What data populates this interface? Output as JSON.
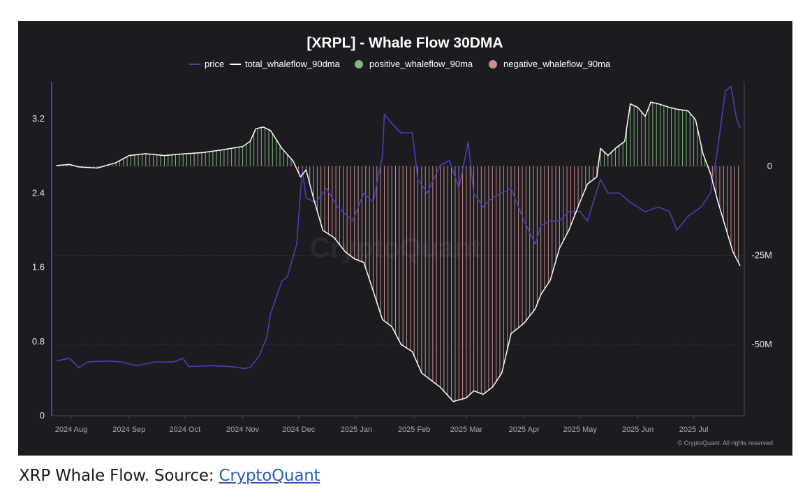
{
  "chart_data": {
    "type": "bar+line",
    "title": "[XRPL] - Whale Flow 30DMA",
    "legend": [
      {
        "name": "price",
        "color": "#4b3fb3",
        "marker": "line"
      },
      {
        "name": "total_whaleflow_90dma",
        "color": "#ffffff",
        "marker": "line"
      },
      {
        "name": "positive_whaleflow_90ma",
        "color": "#7fb87a",
        "marker": "dot"
      },
      {
        "name": "negative_whaleflow_90ma",
        "color": "#c98f8d",
        "marker": "dot"
      }
    ],
    "legend_position": "top-center",
    "x_ticks": [
      "2024 Aug",
      "2024 Sep",
      "2024 Oct",
      "2024 Nov",
      "2024 Dec",
      "2025 Jan",
      "2025 Feb",
      "2025 Mar",
      "2025 Apr",
      "2025 May",
      "2025 Jun",
      "2025 Jul"
    ],
    "x_range": [
      "2024-07-23",
      "2025-07-27"
    ],
    "y_left": {
      "ticks": [
        "0",
        "0.8",
        "1.6",
        "2.4",
        "3.2"
      ],
      "range": [
        0,
        3.6
      ]
    },
    "y_right": {
      "ticks": [
        "0",
        "-25M",
        "-50M"
      ],
      "range": [
        -70000000,
        23700000
      ]
    },
    "grid": "horizontal",
    "watermark": "CryptoQuant",
    "credit": "© CryptoQuant. All rights reserved",
    "series": [
      {
        "name": "price",
        "axis": "left",
        "points": [
          [
            "2024-07-24",
            0.59
          ],
          [
            "2024-07-31",
            0.62
          ],
          [
            "2024-08-05",
            0.52
          ],
          [
            "2024-08-10",
            0.58
          ],
          [
            "2024-08-20",
            0.59
          ],
          [
            "2024-08-28",
            0.58
          ],
          [
            "2024-09-05",
            0.54
          ],
          [
            "2024-09-15",
            0.58
          ],
          [
            "2024-09-25",
            0.58
          ],
          [
            "2024-09-30",
            0.62
          ],
          [
            "2024-10-03",
            0.53
          ],
          [
            "2024-10-15",
            0.54
          ],
          [
            "2024-10-25",
            0.53
          ],
          [
            "2024-11-02",
            0.51
          ],
          [
            "2024-11-05",
            0.52
          ],
          [
            "2024-11-10",
            0.65
          ],
          [
            "2024-11-14",
            0.85
          ],
          [
            "2024-11-16",
            1.1
          ],
          [
            "2024-11-22",
            1.45
          ],
          [
            "2024-11-25",
            1.5
          ],
          [
            "2024-11-30",
            1.85
          ],
          [
            "2024-12-02",
            2.4
          ],
          [
            "2024-12-03",
            2.65
          ],
          [
            "2024-12-05",
            2.35
          ],
          [
            "2024-12-10",
            2.3
          ],
          [
            "2024-12-16",
            2.45
          ],
          [
            "2024-12-22",
            2.25
          ],
          [
            "2024-12-30",
            2.1
          ],
          [
            "2025-01-05",
            2.4
          ],
          [
            "2025-01-10",
            2.3
          ],
          [
            "2025-01-15",
            2.8
          ],
          [
            "2025-01-16",
            3.25
          ],
          [
            "2025-01-20",
            3.15
          ],
          [
            "2025-01-25",
            3.05
          ],
          [
            "2025-01-31",
            3.05
          ],
          [
            "2025-02-03",
            2.55
          ],
          [
            "2025-02-08",
            2.4
          ],
          [
            "2025-02-15",
            2.7
          ],
          [
            "2025-02-20",
            2.75
          ],
          [
            "2025-02-25",
            2.45
          ],
          [
            "2025-03-02",
            2.95
          ],
          [
            "2025-03-05",
            2.4
          ],
          [
            "2025-03-10",
            2.25
          ],
          [
            "2025-03-15",
            2.35
          ],
          [
            "2025-03-20",
            2.4
          ],
          [
            "2025-03-25",
            2.45
          ],
          [
            "2025-04-01",
            2.1
          ],
          [
            "2025-04-07",
            1.85
          ],
          [
            "2025-04-10",
            2.05
          ],
          [
            "2025-04-15",
            2.1
          ],
          [
            "2025-04-20",
            2.1
          ],
          [
            "2025-04-25",
            2.2
          ],
          [
            "2025-05-01",
            2.2
          ],
          [
            "2025-05-05",
            2.1
          ],
          [
            "2025-05-12",
            2.55
          ],
          [
            "2025-05-16",
            2.4
          ],
          [
            "2025-05-22",
            2.4
          ],
          [
            "2025-05-28",
            2.3
          ],
          [
            "2025-06-05",
            2.2
          ],
          [
            "2025-06-12",
            2.25
          ],
          [
            "2025-06-18",
            2.2
          ],
          [
            "2025-06-22",
            2.0
          ],
          [
            "2025-06-28",
            2.15
          ],
          [
            "2025-07-05",
            2.25
          ],
          [
            "2025-07-10",
            2.4
          ],
          [
            "2025-07-14",
            2.9
          ],
          [
            "2025-07-18",
            3.5
          ],
          [
            "2025-07-21",
            3.55
          ],
          [
            "2025-07-24",
            3.2
          ],
          [
            "2025-07-26",
            3.1
          ]
        ]
      },
      {
        "name": "total_whaleflow_90dma",
        "axis": "right",
        "points": [
          [
            "2024-07-24",
            200000
          ],
          [
            "2024-07-31",
            500000
          ],
          [
            "2024-08-05",
            -200000
          ],
          [
            "2024-08-15",
            -500000
          ],
          [
            "2024-08-25",
            1000000
          ],
          [
            "2024-09-01",
            3000000
          ],
          [
            "2024-09-10",
            3500000
          ],
          [
            "2024-09-20",
            3000000
          ],
          [
            "2024-10-01",
            3500000
          ],
          [
            "2024-10-10",
            3800000
          ],
          [
            "2024-10-20",
            4500000
          ],
          [
            "2024-10-28",
            5200000
          ],
          [
            "2024-11-01",
            5500000
          ],
          [
            "2024-11-05",
            7000000
          ],
          [
            "2024-11-08",
            10500000
          ],
          [
            "2024-11-12",
            11000000
          ],
          [
            "2024-11-16",
            10000000
          ],
          [
            "2024-11-22",
            5000000
          ],
          [
            "2024-11-28",
            1500000
          ],
          [
            "2024-12-02",
            -3000000
          ],
          [
            "2024-12-05",
            -1000000
          ],
          [
            "2024-12-09",
            -9000000
          ],
          [
            "2024-12-14",
            -18000000
          ],
          [
            "2024-12-20",
            -20000000
          ],
          [
            "2024-12-26",
            -24000000
          ],
          [
            "2024-12-31",
            -26000000
          ],
          [
            "2025-01-05",
            -27000000
          ],
          [
            "2025-01-10",
            -35000000
          ],
          [
            "2025-01-15",
            -43000000
          ],
          [
            "2025-01-20",
            -45000000
          ],
          [
            "2025-01-25",
            -50000000
          ],
          [
            "2025-01-31",
            -52000000
          ],
          [
            "2025-02-05",
            -58000000
          ],
          [
            "2025-02-10",
            -60000000
          ],
          [
            "2025-02-15",
            -62000000
          ],
          [
            "2025-02-22",
            -66000000
          ],
          [
            "2025-03-01",
            -65000000
          ],
          [
            "2025-03-05",
            -63000000
          ],
          [
            "2025-03-10",
            -64000000
          ],
          [
            "2025-03-15",
            -62000000
          ],
          [
            "2025-03-20",
            -58000000
          ],
          [
            "2025-03-25",
            -47000000
          ],
          [
            "2025-04-01",
            -44000000
          ],
          [
            "2025-04-07",
            -40000000
          ],
          [
            "2025-04-10",
            -36000000
          ],
          [
            "2025-04-15",
            -32000000
          ],
          [
            "2025-04-20",
            -23000000
          ],
          [
            "2025-04-25",
            -18000000
          ],
          [
            "2025-05-01",
            -10000000
          ],
          [
            "2025-05-05",
            -5000000
          ],
          [
            "2025-05-10",
            -3000000
          ],
          [
            "2025-05-12",
            5000000
          ],
          [
            "2025-05-16",
            3000000
          ],
          [
            "2025-05-20",
            5000000
          ],
          [
            "2025-05-25",
            7000000
          ],
          [
            "2025-05-28",
            17500000
          ],
          [
            "2025-06-01",
            16500000
          ],
          [
            "2025-06-05",
            14000000
          ],
          [
            "2025-06-08",
            18000000
          ],
          [
            "2025-06-12",
            17500000
          ],
          [
            "2025-06-18",
            16500000
          ],
          [
            "2025-06-22",
            16000000
          ],
          [
            "2025-06-28",
            15500000
          ],
          [
            "2025-07-02",
            13000000
          ],
          [
            "2025-07-06",
            3500000
          ],
          [
            "2025-07-10",
            -2000000
          ],
          [
            "2025-07-14",
            -10000000
          ],
          [
            "2025-07-18",
            -17000000
          ],
          [
            "2025-07-22",
            -24000000
          ],
          [
            "2025-07-26",
            -28000000
          ]
        ]
      }
    ]
  },
  "caption": {
    "text": "XRP Whale Flow. Source: ",
    "link_text": "CryptoQuant"
  }
}
